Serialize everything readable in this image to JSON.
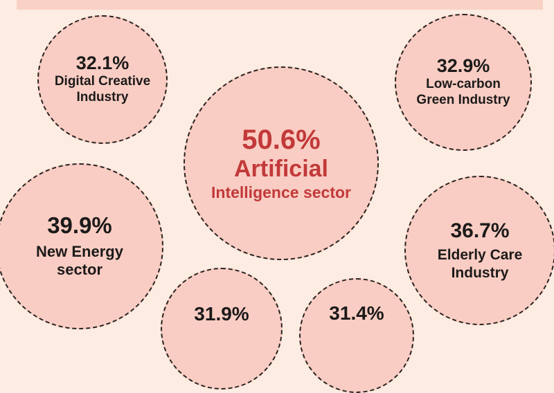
{
  "colors": {
    "background": "#fcece2",
    "bubble": "#f9cdc3",
    "highlight_text": "#c2393a",
    "text": "#1c1a1a"
  },
  "bubbles": [
    {
      "percent": "32.1%",
      "label_lines": [
        "Digital Creative",
        "Industry"
      ]
    },
    {
      "percent": "32.9%",
      "label_lines": [
        "Low-carbon",
        "Green Industry"
      ]
    },
    {
      "percent": "50.6%",
      "label_lines": [
        "Artificial",
        "Intelligence sector"
      ]
    },
    {
      "percent": "39.9%",
      "label_lines": [
        "New Energy",
        "sector"
      ]
    },
    {
      "percent": "36.7%",
      "label_lines": [
        "Elderly Care",
        "Industry"
      ]
    },
    {
      "percent": "31.9%",
      "label_lines": []
    },
    {
      "percent": "31.4%",
      "label_lines": []
    }
  ]
}
